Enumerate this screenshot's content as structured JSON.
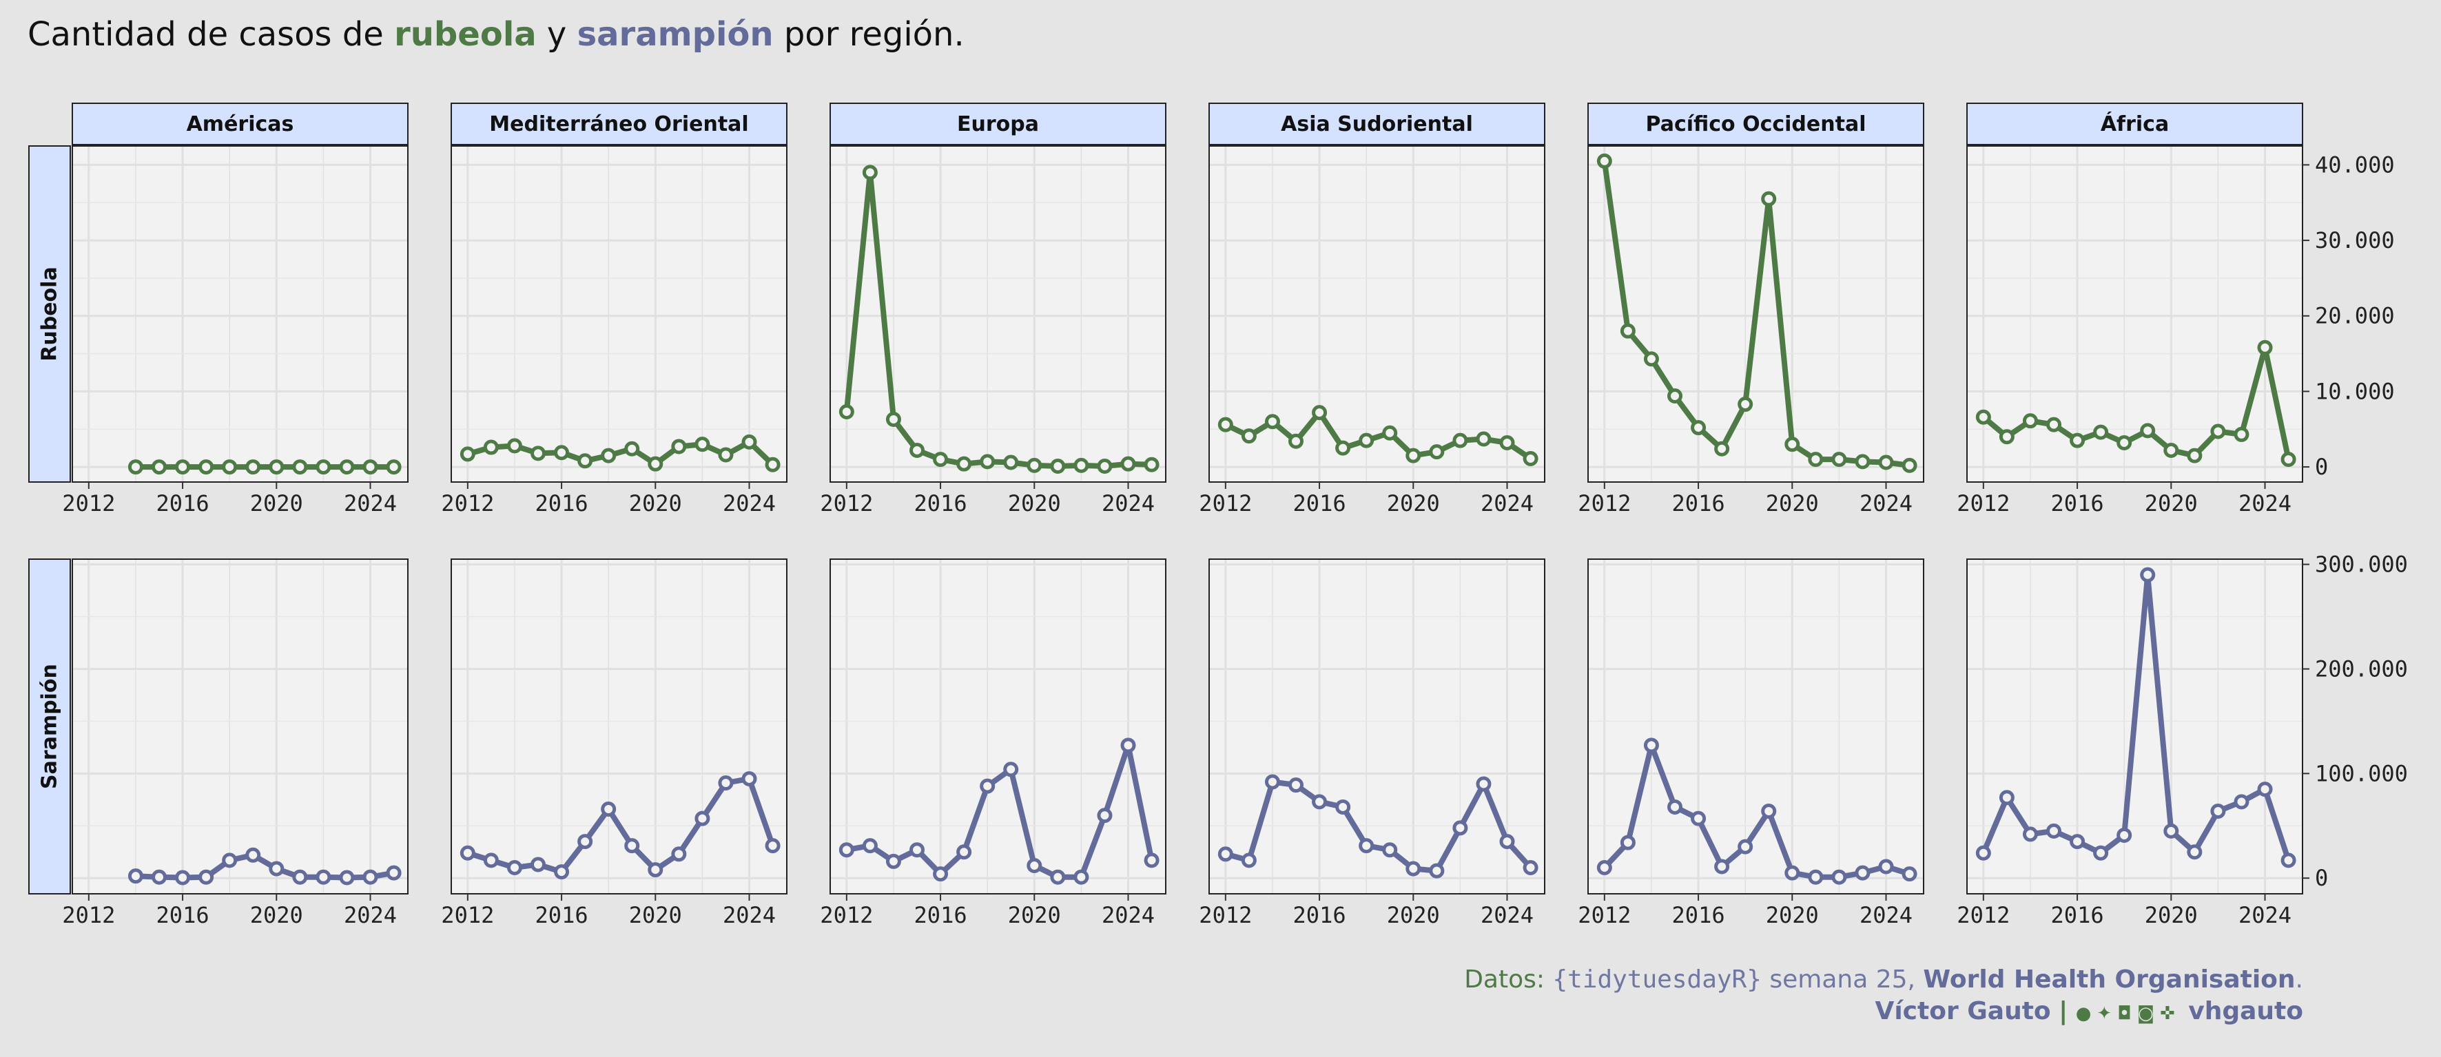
{
  "title": {
    "prefix": "Cantidad de casos de ",
    "rubeola": "rubeola",
    "middle": " y ",
    "sarampion": "sarampión",
    "suffix": " por región."
  },
  "colors": {
    "rubeola": "#4E7A46",
    "sarampion": "#626B9A",
    "strip": "#D5E2FF",
    "panel": "#F2F2F2",
    "background": "#E5E5E5"
  },
  "caption": {
    "line1_source": "Datos:",
    "line1_tag": "{tidytuesdayR}",
    "line1_week": "semana 25,",
    "line1_org": "World Health Organisation",
    "line1_end": ".",
    "line2_author": "Víctor Gauto",
    "line2_sep": "|",
    "line2_icons": [
      "github-icon",
      "twitter-icon",
      "instagram-icon",
      "mastodon-icon",
      "bluesky-icon"
    ],
    "line2_handle": "vhgauto"
  },
  "chart_data": {
    "type": "line",
    "facets": {
      "columns": [
        "Américas",
        "Mediterráneo Oriental",
        "Europa",
        "Asia Sudoriental",
        "Pacífico Occidental",
        "África"
      ],
      "rows": [
        "Rubeola",
        "Sarampión"
      ]
    },
    "x_ticks": [
      2012,
      2016,
      2020,
      2024
    ],
    "xlim": [
      2011.3,
      2025.6
    ],
    "rows": [
      {
        "name": "Rubeola",
        "ylim": [
          -2000,
          42500
        ],
        "y_ticks": [
          0,
          10000,
          20000,
          30000,
          40000
        ],
        "y_tick_labels": [
          "0",
          "10.000",
          "20.000",
          "30.000",
          "40.000"
        ],
        "series": [
          {
            "region": "Américas",
            "x": [
              2014,
              2015,
              2016,
              2017,
              2018,
              2019,
              2020,
              2021,
              2022,
              2023,
              2024,
              2025
            ],
            "y": [
              0,
              0,
              0,
              0,
              0,
              0,
              0,
              0,
              0,
              0,
              0,
              0
            ]
          },
          {
            "region": "Mediterráneo Oriental",
            "x": [
              2012,
              2013,
              2014,
              2015,
              2016,
              2017,
              2018,
              2019,
              2020,
              2021,
              2022,
              2023,
              2024,
              2025
            ],
            "y": [
              1700,
              2600,
              2800,
              1800,
              1900,
              800,
              1500,
              2400,
              400,
              2700,
              3000,
              1600,
              3300,
              300
            ]
          },
          {
            "region": "Europa",
            "x": [
              2012,
              2013,
              2014,
              2015,
              2016,
              2017,
              2018,
              2019,
              2020,
              2021,
              2022,
              2023,
              2024,
              2025
            ],
            "y": [
              7300,
              39000,
              6300,
              2200,
              1000,
              400,
              700,
              600,
              200,
              100,
              200,
              100,
              400,
              300
            ]
          },
          {
            "region": "Asia Sudoriental",
            "x": [
              2012,
              2013,
              2014,
              2015,
              2016,
              2017,
              2018,
              2019,
              2020,
              2021,
              2022,
              2023,
              2024,
              2025
            ],
            "y": [
              5600,
              4100,
              6000,
              3400,
              7200,
              2500,
              3500,
              4500,
              1500,
              2000,
              3500,
              3700,
              3200,
              1100
            ]
          },
          {
            "region": "Pacífico Occidental",
            "x": [
              2012,
              2013,
              2014,
              2015,
              2016,
              2017,
              2018,
              2019,
              2020,
              2021,
              2022,
              2023,
              2024,
              2025
            ],
            "y": [
              40500,
              18000,
              14300,
              9400,
              5200,
              2400,
              8300,
              35500,
              3000,
              1000,
              1000,
              700,
              600,
              200
            ]
          },
          {
            "region": "África",
            "x": [
              2012,
              2013,
              2014,
              2015,
              2016,
              2017,
              2018,
              2019,
              2020,
              2021,
              2022,
              2023,
              2024,
              2025
            ],
            "y": [
              6600,
              4000,
              6100,
              5600,
              3500,
              4600,
              3200,
              4800,
              2200,
              1500,
              4700,
              4300,
              15800,
              1000
            ]
          }
        ]
      },
      {
        "name": "Sarampión",
        "ylim": [
          -15000,
          305000
        ],
        "y_ticks": [
          0,
          100000,
          200000,
          300000
        ],
        "y_tick_labels": [
          "0",
          "100.000",
          "200.000",
          "300.000"
        ],
        "series": [
          {
            "region": "Américas",
            "x": [
              2014,
              2015,
              2016,
              2017,
              2018,
              2019,
              2020,
              2021,
              2022,
              2023,
              2024,
              2025
            ],
            "y": [
              2000,
              1000,
              500,
              1000,
              17000,
              22000,
              9000,
              1000,
              1000,
              500,
              1000,
              5000
            ]
          },
          {
            "region": "Mediterráneo Oriental",
            "x": [
              2012,
              2013,
              2014,
              2015,
              2016,
              2017,
              2018,
              2019,
              2020,
              2021,
              2022,
              2023,
              2024,
              2025
            ],
            "y": [
              24000,
              17000,
              10000,
              13000,
              6000,
              35000,
              66000,
              31000,
              8000,
              23000,
              57000,
              91000,
              95000,
              31000
            ]
          },
          {
            "region": "Europa",
            "x": [
              2012,
              2013,
              2014,
              2015,
              2016,
              2017,
              2018,
              2019,
              2020,
              2021,
              2022,
              2023,
              2024,
              2025
            ],
            "y": [
              27000,
              31000,
              16000,
              27000,
              4000,
              25000,
              88000,
              104000,
              12000,
              1000,
              1000,
              60000,
              127000,
              17000
            ]
          },
          {
            "region": "Asia Sudoriental",
            "x": [
              2012,
              2013,
              2014,
              2015,
              2016,
              2017,
              2018,
              2019,
              2020,
              2021,
              2022,
              2023,
              2024,
              2025
            ],
            "y": [
              23000,
              17000,
              92000,
              89000,
              73000,
              68000,
              31000,
              27000,
              9000,
              7000,
              48000,
              90000,
              35000,
              10000
            ]
          },
          {
            "region": "Pacífico Occidental",
            "x": [
              2012,
              2013,
              2014,
              2015,
              2016,
              2017,
              2018,
              2019,
              2020,
              2021,
              2022,
              2023,
              2024,
              2025
            ],
            "y": [
              10000,
              34000,
              127000,
              68000,
              57000,
              11000,
              30000,
              64000,
              5000,
              1000,
              1000,
              5000,
              11000,
              4000
            ]
          },
          {
            "region": "África",
            "x": [
              2012,
              2013,
              2014,
              2015,
              2016,
              2017,
              2018,
              2019,
              2020,
              2021,
              2022,
              2023,
              2024,
              2025
            ],
            "y": [
              24000,
              77000,
              42000,
              45000,
              35000,
              24000,
              41000,
              290000,
              45000,
              25000,
              64000,
              73000,
              85000,
              17000
            ]
          }
        ]
      }
    ]
  }
}
